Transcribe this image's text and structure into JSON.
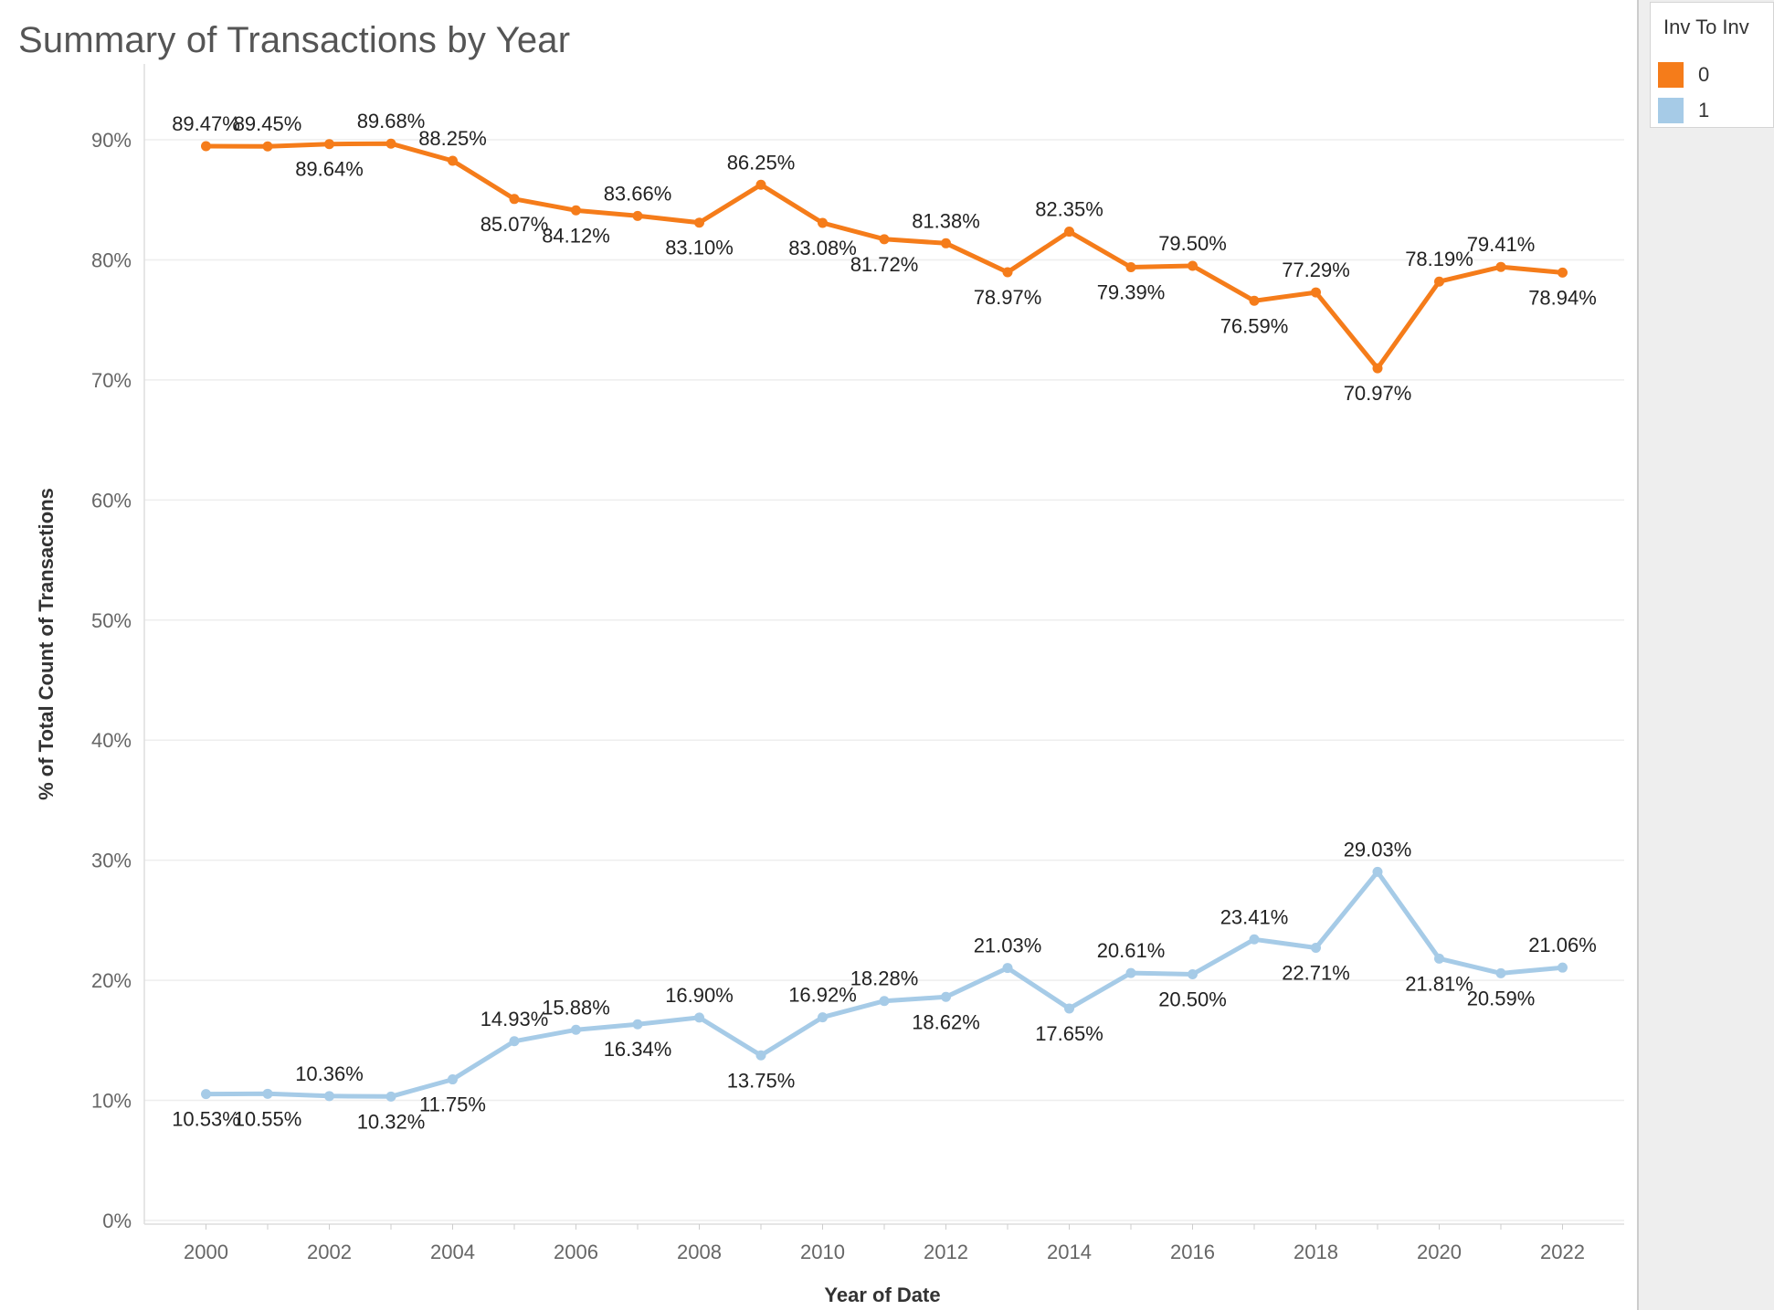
{
  "colors": {
    "series_0": "#f57c1a",
    "series_1": "#a6cbe7",
    "grid": "#eeeeee",
    "axis_text": "#666666",
    "label_text": "#222222"
  },
  "legend": {
    "title": "Inv To Inv",
    "items": [
      {
        "label": "0",
        "color": "#f57c1a"
      },
      {
        "label": "1",
        "color": "#a6cbe7"
      }
    ]
  },
  "chart_data": {
    "type": "line",
    "title": "Summary of Transactions by Year",
    "xlabel": "Year of Date",
    "ylabel": "% of Total Count of Transactions",
    "x": [
      2000,
      2001,
      2002,
      2003,
      2004,
      2005,
      2006,
      2007,
      2008,
      2009,
      2010,
      2011,
      2012,
      2013,
      2014,
      2015,
      2016,
      2017,
      2018,
      2019,
      2020,
      2021,
      2022
    ],
    "x_ticks": [
      "2000",
      "2002",
      "2004",
      "2006",
      "2008",
      "2010",
      "2012",
      "2014",
      "2016",
      "2018",
      "2020",
      "2022"
    ],
    "y_ticks": [
      "0%",
      "10%",
      "20%",
      "30%",
      "40%",
      "50%",
      "60%",
      "70%",
      "80%",
      "90%"
    ],
    "ylim": [
      0,
      95
    ],
    "xlim": [
      1999,
      2023
    ],
    "grid": true,
    "legend_position": "top-right",
    "series": [
      {
        "name": "0",
        "color": "#f57c1a",
        "values": [
          89.47,
          89.45,
          89.64,
          89.68,
          88.25,
          85.07,
          84.12,
          83.66,
          83.1,
          86.25,
          83.08,
          81.72,
          81.38,
          78.97,
          82.35,
          79.39,
          79.5,
          76.59,
          77.29,
          70.97,
          78.19,
          79.41,
          78.94
        ],
        "labels": [
          "89.47%",
          "89.45%",
          "89.64%",
          "89.68%",
          "88.25%",
          "85.07%",
          "84.12%",
          "83.66%",
          "83.10%",
          "86.25%",
          "83.08%",
          "81.72%",
          "81.38%",
          "78.97%",
          "82.35%",
          "79.39%",
          "79.50%",
          "76.59%",
          "77.29%",
          "70.97%",
          "78.19%",
          "79.41%",
          "78.94%"
        ],
        "label_positions": [
          "above",
          "above",
          "below",
          "above",
          "above",
          "below",
          "below",
          "above",
          "below",
          "above",
          "below",
          "below",
          "above",
          "below",
          "above",
          "below",
          "above",
          "below",
          "above",
          "below",
          "above",
          "above",
          "below"
        ]
      },
      {
        "name": "1",
        "color": "#a6cbe7",
        "values": [
          10.53,
          10.55,
          10.36,
          10.32,
          11.75,
          14.93,
          15.88,
          16.34,
          16.9,
          13.75,
          16.92,
          18.28,
          18.62,
          21.03,
          17.65,
          20.61,
          20.5,
          23.41,
          22.71,
          29.03,
          21.81,
          20.59,
          21.06
        ],
        "labels": [
          "10.53%",
          "10.55%",
          "10.36%",
          "10.32%",
          "11.75%",
          "14.93%",
          "15.88%",
          "16.34%",
          "16.90%",
          "13.75%",
          "16.92%",
          "18.28%",
          "18.62%",
          "21.03%",
          "17.65%",
          "20.61%",
          "20.50%",
          "23.41%",
          "22.71%",
          "29.03%",
          "21.81%",
          "20.59%",
          "21.06%"
        ],
        "label_positions": [
          "below",
          "below",
          "above",
          "below",
          "below",
          "above",
          "above",
          "below",
          "above",
          "below",
          "above",
          "above",
          "below",
          "above",
          "below",
          "above",
          "below",
          "above",
          "below",
          "above",
          "below",
          "below",
          "above"
        ]
      }
    ]
  }
}
